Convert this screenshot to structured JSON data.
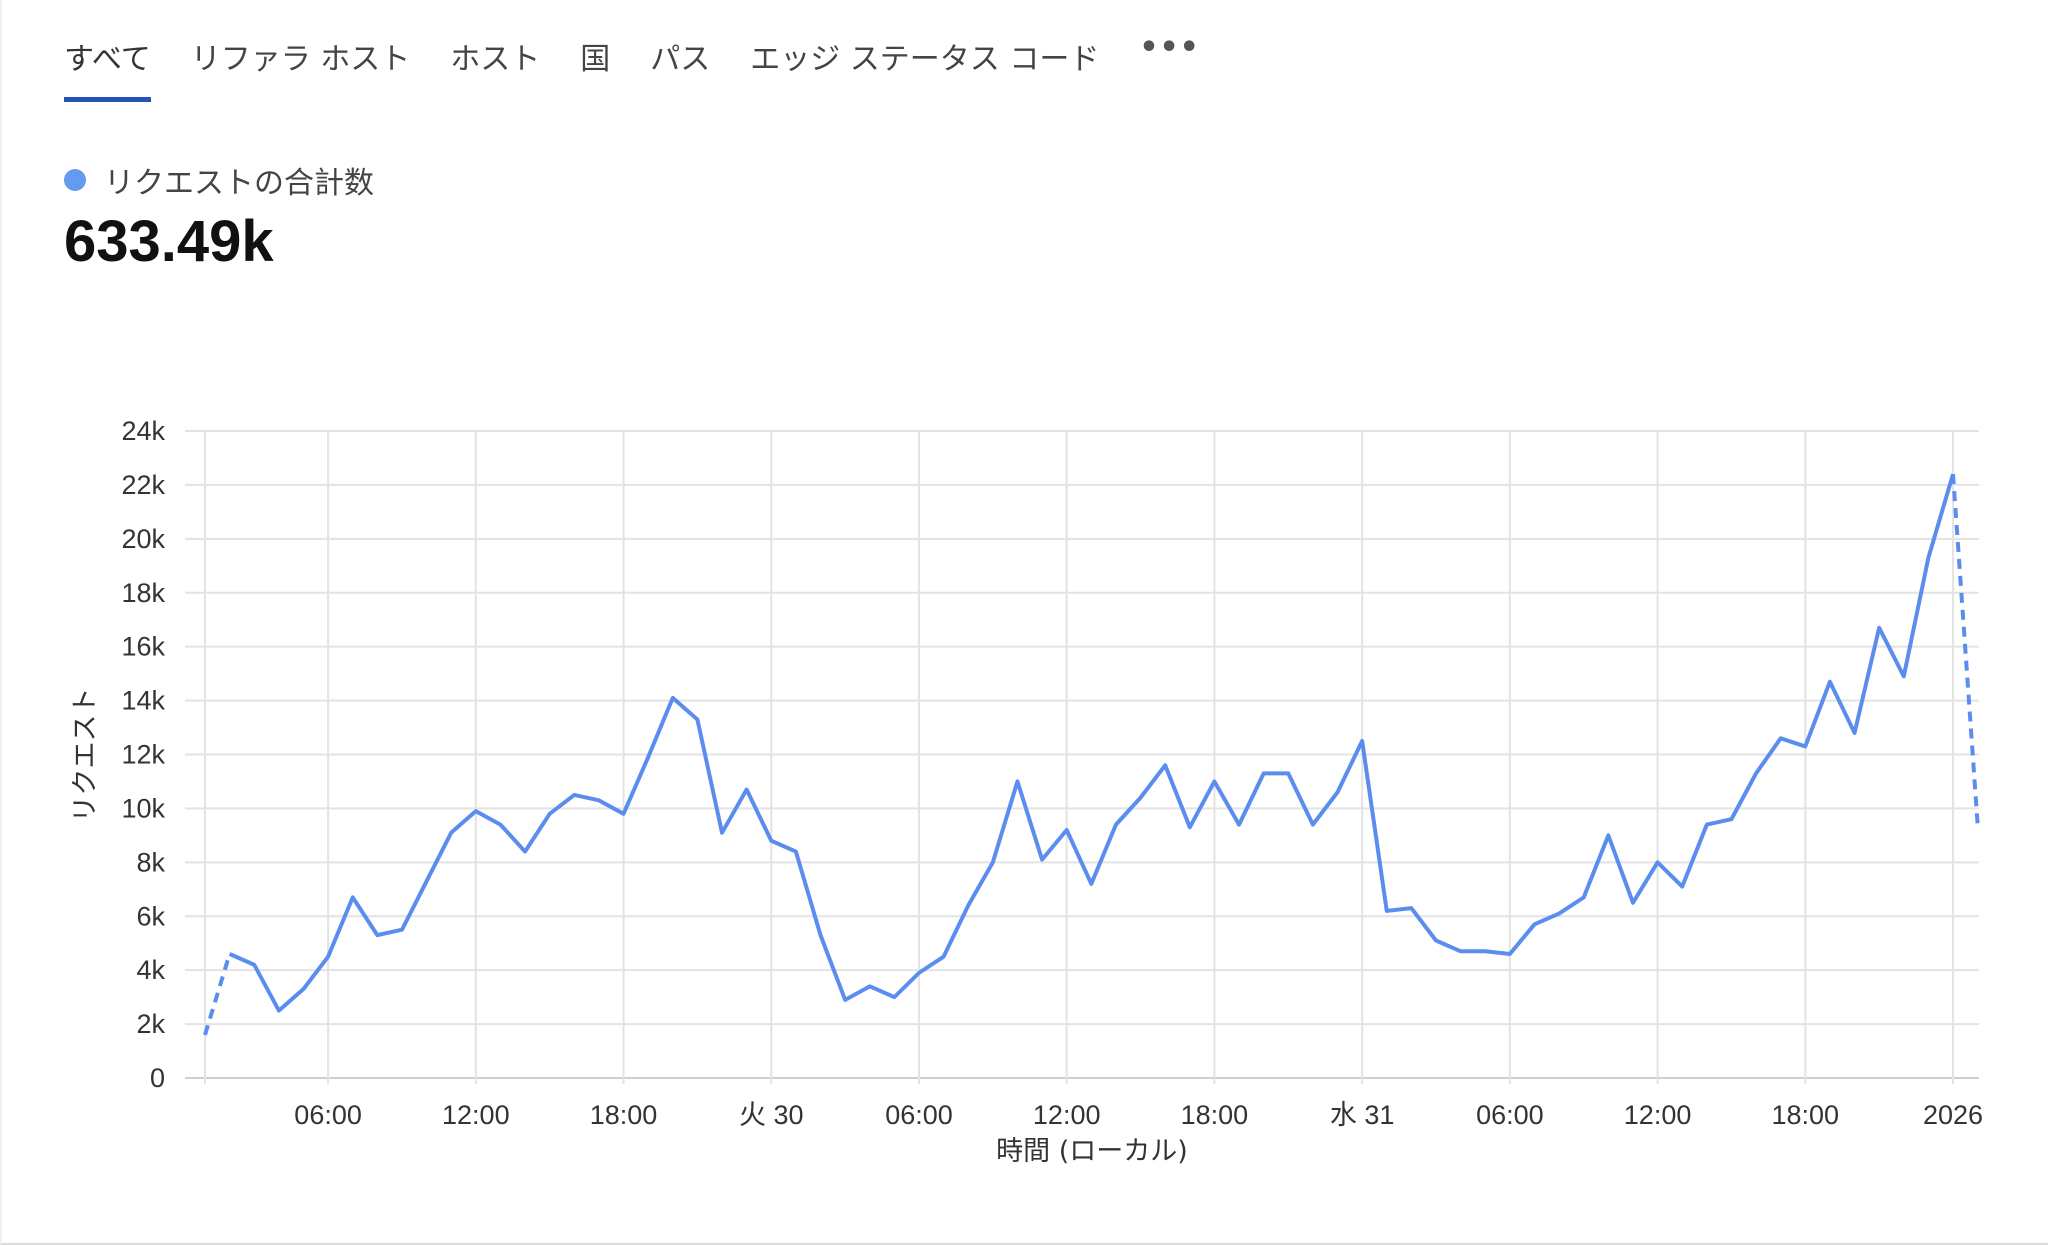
{
  "tabs": [
    {
      "label": "すべて",
      "active": true
    },
    {
      "label": "リファラ ホスト",
      "active": false
    },
    {
      "label": "ホスト",
      "active": false
    },
    {
      "label": "国",
      "active": false
    },
    {
      "label": "パス",
      "active": false
    },
    {
      "label": "エッジ ステータス コード",
      "active": false
    }
  ],
  "more_label": "•••",
  "summary": {
    "legend_label": "リクエストの合計数",
    "legend_color": "#6699f0",
    "total": "633.49k"
  },
  "colors": {
    "line": "#5b8def",
    "tab_indicator": "#2452b8",
    "grid": "#e3e3e3"
  },
  "chart_data": {
    "type": "line",
    "xlabel": "時間 (ローカル)",
    "ylabel": "リクエスト",
    "ylim": [
      0,
      24000
    ],
    "yticks": [
      {
        "value": 0,
        "label": "0"
      },
      {
        "value": 2000,
        "label": "2k"
      },
      {
        "value": 4000,
        "label": "4k"
      },
      {
        "value": 6000,
        "label": "6k"
      },
      {
        "value": 8000,
        "label": "8k"
      },
      {
        "value": 10000,
        "label": "10k"
      },
      {
        "value": 12000,
        "label": "12k"
      },
      {
        "value": 14000,
        "label": "14k"
      },
      {
        "value": 16000,
        "label": "16k"
      },
      {
        "value": 18000,
        "label": "18k"
      },
      {
        "value": 20000,
        "label": "20k"
      },
      {
        "value": 22000,
        "label": "22k"
      },
      {
        "value": 24000,
        "label": "24k"
      }
    ],
    "xticks": [
      {
        "at": "29 06:00",
        "label": "06:00"
      },
      {
        "at": "29 12:00",
        "label": "12:00"
      },
      {
        "at": "29 18:00",
        "label": "18:00"
      },
      {
        "at": "30 00:00",
        "label": "火 30"
      },
      {
        "at": "30 06:00",
        "label": "06:00"
      },
      {
        "at": "30 12:00",
        "label": "12:00"
      },
      {
        "at": "30 18:00",
        "label": "18:00"
      },
      {
        "at": "31 00:00",
        "label": "水 31"
      },
      {
        "at": "31 06:00",
        "label": "06:00"
      },
      {
        "at": "31 12:00",
        "label": "12:00"
      },
      {
        "at": "31 18:00",
        "label": "18:00"
      },
      {
        "at": "01 00:00",
        "label": "2026"
      }
    ],
    "grid": true,
    "partial_segments": "dashed first and last segments",
    "x": [
      "29 01:00",
      "29 02:00",
      "29 03:00",
      "29 04:00",
      "29 05:00",
      "29 06:00",
      "29 07:00",
      "29 08:00",
      "29 09:00",
      "29 10:00",
      "29 11:00",
      "29 12:00",
      "29 13:00",
      "29 14:00",
      "29 15:00",
      "29 16:00",
      "29 17:00",
      "29 18:00",
      "29 19:00",
      "29 20:00",
      "29 21:00",
      "29 22:00",
      "29 23:00",
      "30 00:00",
      "30 01:00",
      "30 02:00",
      "30 03:00",
      "30 04:00",
      "30 05:00",
      "30 06:00",
      "30 07:00",
      "30 08:00",
      "30 09:00",
      "30 10:00",
      "30 11:00",
      "30 12:00",
      "30 13:00",
      "30 14:00",
      "30 15:00",
      "30 16:00",
      "30 17:00",
      "30 18:00",
      "30 19:00",
      "30 20:00",
      "30 21:00",
      "30 22:00",
      "30 23:00",
      "31 00:00",
      "31 01:00",
      "31 02:00",
      "31 03:00",
      "31 04:00",
      "31 05:00",
      "31 06:00",
      "31 07:00",
      "31 08:00",
      "31 09:00",
      "31 10:00",
      "31 11:00",
      "31 12:00",
      "31 13:00",
      "31 14:00",
      "31 15:00",
      "31 16:00",
      "31 17:00",
      "31 18:00",
      "31 19:00",
      "31 20:00",
      "31 21:00",
      "31 22:00",
      "31 23:00",
      "01 00:00",
      "01 01:00"
    ],
    "values": [
      1600,
      4600,
      4200,
      2500,
      3300,
      4500,
      6700,
      5300,
      5500,
      7300,
      9100,
      9900,
      9400,
      8400,
      9800,
      10500,
      10300,
      9800,
      11900,
      14100,
      13300,
      9100,
      10700,
      8800,
      8400,
      5300,
      2900,
      3400,
      3000,
      3900,
      4500,
      6400,
      8000,
      11000,
      8100,
      9200,
      7200,
      9400,
      10400,
      11600,
      9300,
      11000,
      9400,
      11300,
      11300,
      9400,
      10600,
      12500,
      6200,
      6300,
      5100,
      4700,
      4700,
      4600,
      5700,
      6100,
      6700,
      9000,
      6500,
      8000,
      7100,
      9400,
      9600,
      11300,
      12600,
      12300,
      14700,
      12800,
      16700,
      14900,
      19300,
      22400,
      9400
    ]
  }
}
